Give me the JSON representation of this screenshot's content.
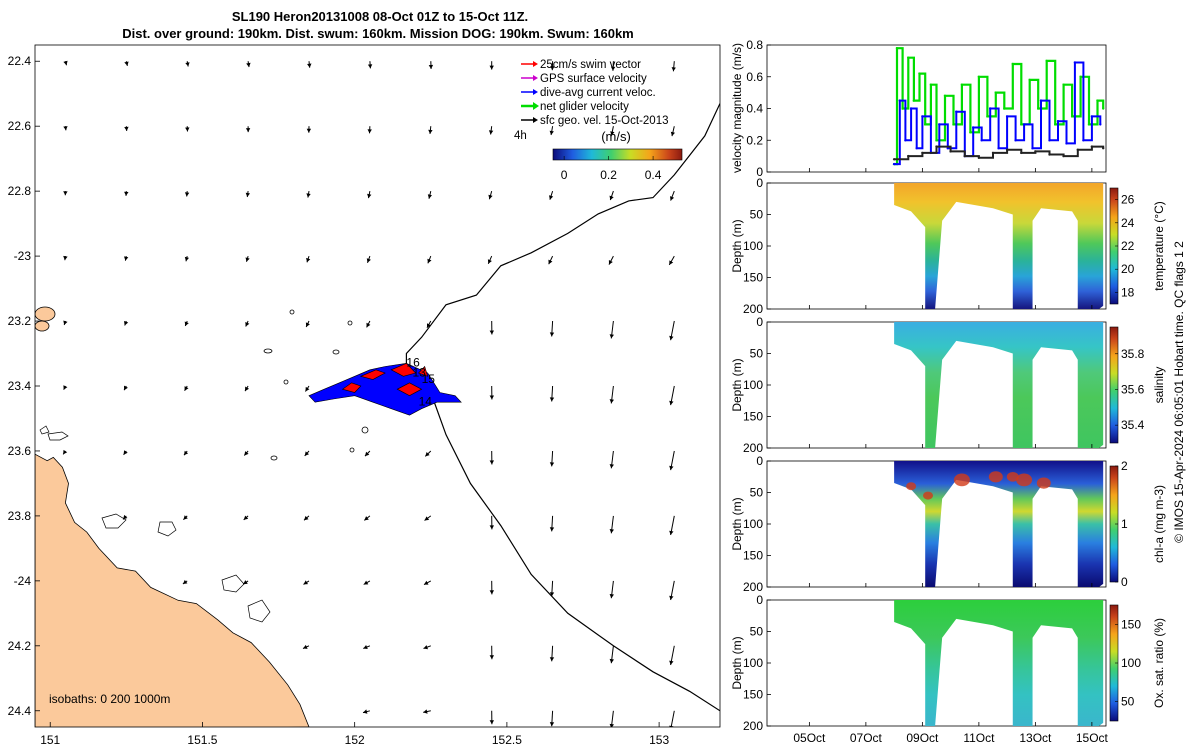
{
  "title": {
    "line1": "SL190 Heron20131008 08-Oct 01Z to 15-Oct 11Z.",
    "line2": "Dist. over ground: 190km. Dist. swum: 160km. Mission DOG: 190km. Swum: 160km"
  },
  "credit": "© IMOS 15-Apr-2024 06:05:01 Hobart time. QC flags 1  2",
  "colors": {
    "land": "#fbc99b",
    "swim": "#ff0000",
    "gps": "#cc00cc",
    "dive": "#0000ff",
    "net": "#00dd00",
    "sfc": "#000000",
    "track_fill": "#0000ff",
    "track_red": "#ff0000"
  },
  "chart_data": [
    {
      "type": "map",
      "name": "glider_track_map",
      "xlim": [
        150.95,
        153.2
      ],
      "ylim": [
        -24.45,
        -22.35
      ],
      "x_ticks": [
        151,
        151.5,
        152,
        152.5,
        153
      ],
      "x_tick_labels": [
        "151",
        "151.5",
        "152",
        "152.5",
        "153"
      ],
      "y_ticks": [
        -22.4,
        -22.6,
        -22.8,
        -23,
        -23.2,
        -23.4,
        -23.6,
        -23.8,
        -24,
        -24.2,
        -24.4
      ],
      "y_tick_labels": [
        "22.4",
        "22.6",
        "22.8",
        "-23",
        "23.2",
        "23.4",
        "23.6",
        "23.8",
        "-24",
        "24.2",
        "24.4"
      ],
      "legend": {
        "entries": [
          "25cm/s swim vector",
          "GPS surface velocity",
          "dive-avg current veloc.",
          "net glider velocity",
          "sfc geo. vel. 15-Oct-2013"
        ],
        "interval_label": "4h",
        "colorbar_title": "(m/s)",
        "colorbar_range": [
          -0.05,
          0.53
        ],
        "colorbar_ticks": [
          0,
          0.2,
          0.4
        ],
        "colorbar_tick_labels": [
          "0",
          "0.2",
          "0.4"
        ]
      },
      "isobaths_label": "isobaths: 0   200   1000m",
      "isobaths": [
        0,
        200,
        1000
      ],
      "day_labels": [
        {
          "text": "16",
          "lon": 152.17,
          "lat": -23.34
        },
        {
          "text": "13",
          "lon": 152.19,
          "lat": -23.37
        },
        {
          "text": "15",
          "lon": 152.22,
          "lat": -23.39
        },
        {
          "text": "14",
          "lon": 152.21,
          "lat": -23.46
        }
      ],
      "coastline": [
        [
          150.95,
          -23.61
        ],
        [
          150.99,
          -23.63
        ],
        [
          151.01,
          -23.62
        ],
        [
          151.04,
          -23.65
        ],
        [
          151.06,
          -23.7
        ],
        [
          151.05,
          -23.76
        ],
        [
          151.08,
          -23.82
        ],
        [
          151.12,
          -23.85
        ],
        [
          151.16,
          -23.9
        ],
        [
          151.22,
          -23.96
        ],
        [
          151.28,
          -23.97
        ],
        [
          151.33,
          -24.02
        ],
        [
          151.42,
          -24.06
        ],
        [
          151.48,
          -24.07
        ],
        [
          151.55,
          -24.12
        ],
        [
          151.6,
          -24.16
        ],
        [
          151.66,
          -24.19
        ],
        [
          151.72,
          -24.25
        ],
        [
          151.78,
          -24.32
        ],
        [
          151.82,
          -24.38
        ],
        [
          151.85,
          -24.45
        ]
      ],
      "shelf_edge": [
        [
          153.2,
          -22.53
        ],
        [
          153.15,
          -22.63
        ],
        [
          153.1,
          -22.69
        ],
        [
          153.05,
          -22.75
        ],
        [
          152.98,
          -22.82
        ],
        [
          152.9,
          -22.83
        ],
        [
          152.8,
          -22.87
        ],
        [
          152.7,
          -22.93
        ],
        [
          152.58,
          -22.99
        ],
        [
          152.48,
          -23.03
        ],
        [
          152.4,
          -23.12
        ],
        [
          152.3,
          -23.15
        ],
        [
          152.22,
          -23.25
        ],
        [
          152.17,
          -23.3
        ],
        [
          152.17,
          -23.34
        ],
        [
          152.25,
          -23.42
        ],
        [
          152.3,
          -23.55
        ],
        [
          152.38,
          -23.7
        ],
        [
          152.48,
          -23.83
        ],
        [
          152.58,
          -23.98
        ],
        [
          152.7,
          -24.1
        ],
        [
          152.85,
          -24.2
        ],
        [
          152.98,
          -24.28
        ],
        [
          153.1,
          -24.34
        ],
        [
          153.2,
          -24.4
        ]
      ],
      "track_outline": [
        [
          151.85,
          -23.43
        ],
        [
          151.9,
          -23.41
        ],
        [
          151.95,
          -23.39
        ],
        [
          152.0,
          -23.37
        ],
        [
          152.05,
          -23.35
        ],
        [
          152.1,
          -23.34
        ],
        [
          152.17,
          -23.33
        ],
        [
          152.24,
          -23.36
        ],
        [
          152.28,
          -23.42
        ],
        [
          152.33,
          -23.43
        ],
        [
          152.35,
          -23.45
        ],
        [
          152.27,
          -23.45
        ],
        [
          152.22,
          -23.47
        ],
        [
          152.18,
          -23.49
        ],
        [
          152.12,
          -23.47
        ],
        [
          152.06,
          -23.45
        ],
        [
          152.0,
          -23.43
        ],
        [
          151.93,
          -23.44
        ],
        [
          151.87,
          -23.45
        ]
      ],
      "red_patches": [
        [
          [
            151.96,
            -23.41
          ],
          [
            151.99,
            -23.39
          ],
          [
            152.02,
            -23.4
          ],
          [
            152.0,
            -23.42
          ]
        ],
        [
          [
            152.02,
            -23.37
          ],
          [
            152.07,
            -23.35
          ],
          [
            152.1,
            -23.36
          ],
          [
            152.06,
            -23.38
          ]
        ],
        [
          [
            152.12,
            -23.35
          ],
          [
            152.17,
            -23.33
          ],
          [
            152.2,
            -23.36
          ],
          [
            152.16,
            -23.37
          ]
        ],
        [
          [
            152.14,
            -23.41
          ],
          [
            152.18,
            -23.39
          ],
          [
            152.22,
            -23.41
          ],
          [
            152.18,
            -23.43
          ]
        ],
        [
          [
            152.21,
            -23.36
          ],
          [
            152.23,
            -23.34
          ],
          [
            152.24,
            -23.37
          ]
        ]
      ]
    },
    {
      "type": "line",
      "name": "velocity_magnitude",
      "ylabel": "velocity magnitude (m/s)",
      "ylim": [
        0,
        0.8
      ],
      "y_ticks": [
        0,
        0.2,
        0.4,
        0.6,
        0.8
      ],
      "y_tick_labels": [
        "0",
        "0.2",
        "0.4",
        "0.6",
        "0.8"
      ],
      "xlim_day": [
        3.5,
        15.5
      ],
      "series": [
        {
          "name": "net glider velocity",
          "color": "#00dd00",
          "x": [
            8.0,
            8.1,
            8.3,
            8.5,
            8.7,
            8.9,
            9.1,
            9.3,
            9.5,
            9.8,
            10.1,
            10.4,
            10.7,
            11.0,
            11.3,
            11.6,
            11.9,
            12.2,
            12.5,
            12.8,
            13.1,
            13.4,
            13.7,
            14.0,
            14.3,
            14.6,
            14.9,
            15.2,
            15.4
          ],
          "y": [
            0.05,
            0.78,
            0.4,
            0.72,
            0.45,
            0.62,
            0.3,
            0.55,
            0.2,
            0.48,
            0.3,
            0.55,
            0.25,
            0.6,
            0.35,
            0.5,
            0.4,
            0.68,
            0.3,
            0.58,
            0.4,
            0.7,
            0.3,
            0.55,
            0.35,
            0.6,
            0.3,
            0.45,
            0.4
          ]
        },
        {
          "name": "dive-avg current veloc.",
          "color": "#0000ff",
          "x": [
            8.0,
            8.2,
            8.4,
            8.6,
            8.8,
            9.0,
            9.3,
            9.6,
            9.9,
            10.2,
            10.5,
            10.8,
            11.1,
            11.4,
            11.7,
            12.0,
            12.3,
            12.6,
            12.9,
            13.2,
            13.5,
            13.8,
            14.1,
            14.4,
            14.7,
            15.0,
            15.3
          ],
          "y": [
            0.05,
            0.45,
            0.2,
            0.4,
            0.15,
            0.35,
            0.12,
            0.3,
            0.15,
            0.38,
            0.1,
            0.28,
            0.2,
            0.4,
            0.15,
            0.35,
            0.2,
            0.3,
            0.15,
            0.45,
            0.2,
            0.32,
            0.18,
            0.69,
            0.2,
            0.35,
            0.3
          ]
        },
        {
          "name": "sfc geo. vel.",
          "color": "#222222",
          "x": [
            8.0,
            8.5,
            9.0,
            9.5,
            10.0,
            10.5,
            11.0,
            11.5,
            12.0,
            12.5,
            13.0,
            13.5,
            14.0,
            14.5,
            15.0,
            15.4
          ],
          "y": [
            0.08,
            0.1,
            0.12,
            0.16,
            0.13,
            0.1,
            0.09,
            0.12,
            0.14,
            0.12,
            0.13,
            0.11,
            0.1,
            0.14,
            0.16,
            0.15
          ]
        }
      ]
    },
    {
      "type": "heatmap",
      "name": "temperature_section",
      "ylabel": "Depth (m)",
      "cbar_label": "temperature (°C)",
      "ylim": [
        200,
        0
      ],
      "y_ticks": [
        0,
        50,
        100,
        150,
        200
      ],
      "clim": [
        17,
        27
      ],
      "cbar_ticks": [
        18,
        20,
        22,
        24,
        26
      ],
      "surface_value": 25.5,
      "deep_value": 17.5
    },
    {
      "type": "heatmap",
      "name": "salinity_section",
      "ylabel": "Depth (m)",
      "cbar_label": "salinity",
      "ylim": [
        200,
        0
      ],
      "y_ticks": [
        0,
        50,
        100,
        150,
        200
      ],
      "clim": [
        35.3,
        35.95
      ],
      "cbar_ticks": [
        35.4,
        35.6,
        35.8
      ],
      "surface_value": 35.45,
      "deep_value": 35.62
    },
    {
      "type": "heatmap",
      "name": "chlorophyll_section",
      "ylabel": "Depth (m)",
      "cbar_label": "chl-a (mg m-3)",
      "ylim": [
        200,
        0
      ],
      "y_ticks": [
        0,
        50,
        100,
        150,
        200
      ],
      "clim": [
        0,
        2
      ],
      "cbar_ticks": [
        0,
        1,
        2
      ],
      "surface_value": 0.15,
      "mid_value": 0.9,
      "deep_value": 0.1
    },
    {
      "type": "heatmap",
      "name": "oxygen_section",
      "ylabel": "Depth (m)",
      "cbar_label": "Ox. sat. ratio (%)",
      "ylim": [
        200,
        0
      ],
      "y_ticks": [
        0,
        50,
        100,
        150,
        200
      ],
      "clim": [
        25,
        175
      ],
      "cbar_ticks": [
        50,
        100,
        150
      ],
      "surface_value": 100,
      "deep_value": 82
    }
  ],
  "time_axis": {
    "tick_days": [
      5,
      7,
      9,
      11,
      13,
      15
    ],
    "tick_labels": [
      "05Oct",
      "07Oct",
      "09Oct",
      "11Oct",
      "13Oct",
      "15Oct"
    ],
    "data_start_day": 8.0,
    "data_end_day": 15.4
  }
}
